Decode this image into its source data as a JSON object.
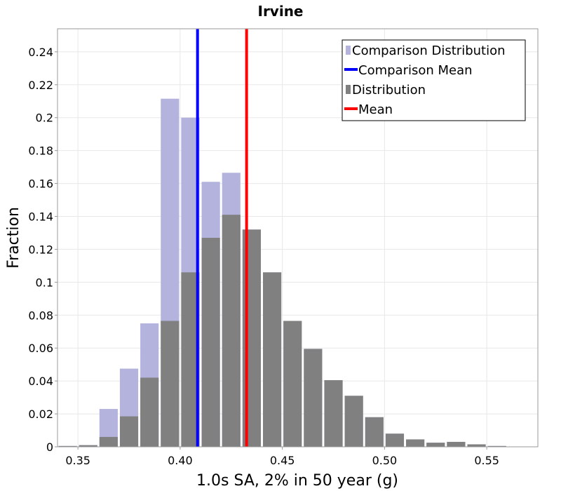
{
  "chart_data": {
    "type": "bar",
    "title": "Irvine",
    "xlabel": "1.0s SA, 2% in 50 year (g)",
    "ylabel": "Fraction",
    "xlim": [
      0.34,
      0.575
    ],
    "ylim": [
      0,
      0.254
    ],
    "xticks": [
      "0.35",
      "0.40",
      "0.45",
      "0.50",
      "0.55"
    ],
    "yticks": [
      "0",
      "0.02",
      "0.04",
      "0.06",
      "0.08",
      "0.1",
      "0.12",
      "0.14",
      "0.16",
      "0.18",
      "0.2",
      "0.22",
      "0.24"
    ],
    "grid": true,
    "legend_position": "top-right",
    "bin_width": 0.01,
    "series": [
      {
        "name": "Comparison Distribution",
        "color": "#b3b3de",
        "bins": [
          {
            "x": 0.345,
            "y": 0.0005
          },
          {
            "x": 0.355,
            "y": 0.001
          },
          {
            "x": 0.365,
            "y": 0.023
          },
          {
            "x": 0.375,
            "y": 0.0475
          },
          {
            "x": 0.385,
            "y": 0.075
          },
          {
            "x": 0.395,
            "y": 0.2115
          },
          {
            "x": 0.405,
            "y": 0.2
          },
          {
            "x": 0.415,
            "y": 0.161
          },
          {
            "x": 0.425,
            "y": 0.1665
          },
          {
            "x": 0.435,
            "y": 0.132
          },
          {
            "x": 0.445,
            "y": 0.106
          },
          {
            "x": 0.455,
            "y": 0.0765
          },
          {
            "x": 0.465,
            "y": 0.0595
          },
          {
            "x": 0.475,
            "y": 0.0405
          },
          {
            "x": 0.485,
            "y": 0.031
          },
          {
            "x": 0.495,
            "y": 0.018
          },
          {
            "x": 0.505,
            "y": 0.008
          },
          {
            "x": 0.515,
            "y": 0.0045
          },
          {
            "x": 0.525,
            "y": 0.0025
          },
          {
            "x": 0.535,
            "y": 0.003
          },
          {
            "x": 0.545,
            "y": 0.0015
          },
          {
            "x": 0.555,
            "y": 0.0005
          }
        ]
      },
      {
        "name": "Distribution",
        "color": "#808080",
        "bins": [
          {
            "x": 0.345,
            "y": 0.0005
          },
          {
            "x": 0.355,
            "y": 0.001
          },
          {
            "x": 0.365,
            "y": 0.006
          },
          {
            "x": 0.375,
            "y": 0.0185
          },
          {
            "x": 0.385,
            "y": 0.042
          },
          {
            "x": 0.395,
            "y": 0.0765
          },
          {
            "x": 0.405,
            "y": 0.106
          },
          {
            "x": 0.415,
            "y": 0.127
          },
          {
            "x": 0.425,
            "y": 0.141
          },
          {
            "x": 0.435,
            "y": 0.132
          },
          {
            "x": 0.445,
            "y": 0.106
          },
          {
            "x": 0.455,
            "y": 0.0765
          },
          {
            "x": 0.465,
            "y": 0.0595
          },
          {
            "x": 0.475,
            "y": 0.0405
          },
          {
            "x": 0.485,
            "y": 0.031
          },
          {
            "x": 0.495,
            "y": 0.018
          },
          {
            "x": 0.505,
            "y": 0.008
          },
          {
            "x": 0.515,
            "y": 0.0045
          },
          {
            "x": 0.525,
            "y": 0.0025
          },
          {
            "x": 0.535,
            "y": 0.003
          },
          {
            "x": 0.545,
            "y": 0.0015
          },
          {
            "x": 0.555,
            "y": 0.0005
          }
        ]
      }
    ],
    "vlines": [
      {
        "name": "Comparison Mean",
        "x": 0.4085,
        "color": "#0000ff"
      },
      {
        "name": "Mean",
        "x": 0.4325,
        "color": "#ff0000"
      }
    ],
    "legend": [
      {
        "label": "Comparison Distribution",
        "kind": "bar",
        "color": "#b3b3de"
      },
      {
        "label": "Comparison Mean",
        "kind": "line",
        "color": "#0000ff"
      },
      {
        "label": "Distribution",
        "kind": "bar",
        "color": "#808080"
      },
      {
        "label": "Mean",
        "kind": "line",
        "color": "#ff0000"
      }
    ]
  }
}
